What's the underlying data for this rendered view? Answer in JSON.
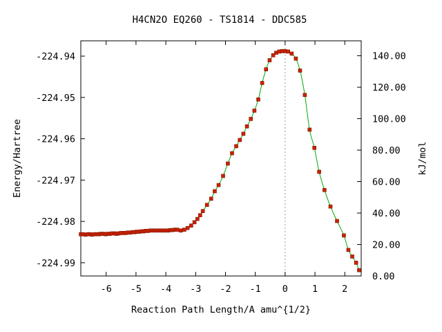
{
  "chart_data": {
    "type": "scatter",
    "title": "H4CN2O   EQ260 - TS1814 - DDC585",
    "xlabel": "Reaction Path Length/A amu^{1/2}",
    "ylabel": "Energy/Hartree",
    "y2label": "kJ/mol",
    "xlim": [
      -6.85,
      2.55
    ],
    "ylim": [
      -224.9932,
      -224.9363
    ],
    "y2lim": [
      0.0,
      149.5
    ],
    "x_ticks": [
      -6,
      -5,
      -4,
      -3,
      -2,
      -1,
      0,
      1,
      2
    ],
    "x_tick_labels": [
      "-6",
      "-5",
      "-4",
      "-3",
      "-2",
      "-1",
      "0",
      "1",
      "2"
    ],
    "y_ticks": [
      -224.94,
      -224.95,
      -224.96,
      -224.97,
      -224.98,
      -224.99
    ],
    "y_tick_labels": [
      "-224.94",
      "-224.95",
      "-224.96",
      "-224.97",
      "-224.98",
      "-224.99"
    ],
    "y2_ticks": [
      0,
      20,
      40,
      60,
      80,
      100,
      120,
      140
    ],
    "y2_tick_labels": [
      "0.00",
      "20.00",
      "40.00",
      "60.00",
      "80.00",
      "100.00",
      "120.00",
      "140.00"
    ],
    "ts_marker_x": 0.0,
    "grid": false,
    "legend": "none",
    "colors": {
      "points": "#cc2200",
      "curve": "#00aa00",
      "ts_line": "#999999",
      "axes": "#000000"
    },
    "series": [
      {
        "x": [
          -6.85,
          -6.78,
          -6.7,
          -6.62,
          -6.55,
          -6.48,
          -6.4,
          -6.32,
          -6.25,
          -6.18,
          -6.1,
          -6.02,
          -5.95,
          -5.88,
          -5.8,
          -5.72,
          -5.65,
          -5.58,
          -5.5,
          -5.42,
          -5.35,
          -5.28,
          -5.2,
          -5.12,
          -5.05,
          -4.98,
          -4.9,
          -4.82,
          -4.75,
          -4.68,
          -4.6,
          -4.52,
          -4.45,
          -4.38,
          -4.3,
          -4.22,
          -4.15,
          -4.08,
          -4.0,
          -3.92,
          -3.85,
          -3.78,
          -3.7,
          -3.62,
          -3.5,
          -3.38,
          -3.27,
          -3.15,
          -3.04,
          -2.94,
          -2.85,
          -2.76,
          -2.62,
          -2.48,
          -2.36,
          -2.23,
          -2.08,
          -1.92,
          -1.78,
          -1.64,
          -1.52,
          -1.4,
          -1.28,
          -1.15,
          -1.03,
          -0.9,
          -0.77,
          -0.64,
          -0.52,
          -0.4,
          -0.3,
          -0.2,
          -0.1,
          0.0,
          0.1,
          0.22,
          0.36,
          0.5,
          0.66,
          0.82,
          0.98,
          1.14,
          1.32,
          1.52,
          1.74,
          1.97,
          2.12,
          2.25,
          2.38,
          2.48
        ],
        "y": [
          -224.9831,
          -224.9831,
          -224.9832,
          -224.9831,
          -224.9831,
          -224.9832,
          -224.9831,
          -224.9831,
          -224.9831,
          -224.983,
          -224.983,
          -224.9831,
          -224.983,
          -224.983,
          -224.9829,
          -224.9829,
          -224.983,
          -224.9829,
          -224.9828,
          -224.9828,
          -224.9828,
          -224.9827,
          -224.9827,
          -224.9826,
          -224.9826,
          -224.9825,
          -224.9825,
          -224.9824,
          -224.9824,
          -224.9823,
          -224.9823,
          -224.9822,
          -224.9822,
          -224.9822,
          -224.9822,
          -224.9822,
          -224.9822,
          -224.9822,
          -224.9822,
          -224.9822,
          -224.9821,
          -224.9821,
          -224.982,
          -224.982,
          -224.9822,
          -224.982,
          -224.9816,
          -224.981,
          -224.9802,
          -224.9794,
          -224.9785,
          -224.9775,
          -224.976,
          -224.9745,
          -224.9727,
          -224.9712,
          -224.969,
          -224.966,
          -224.9635,
          -224.9618,
          -224.9603,
          -224.9588,
          -224.957,
          -224.9552,
          -224.9532,
          -224.9505,
          -224.9465,
          -224.9432,
          -224.941,
          -224.9398,
          -224.9392,
          -224.9389,
          -224.9388,
          -224.9388,
          -224.9389,
          -224.9394,
          -224.9406,
          -224.9435,
          -224.9494,
          -224.9578,
          -224.9622,
          -224.968,
          -224.9724,
          -224.9764,
          -224.9799,
          -224.9834,
          -224.9869,
          -224.9885,
          -224.99,
          -224.9918
        ]
      }
    ]
  }
}
